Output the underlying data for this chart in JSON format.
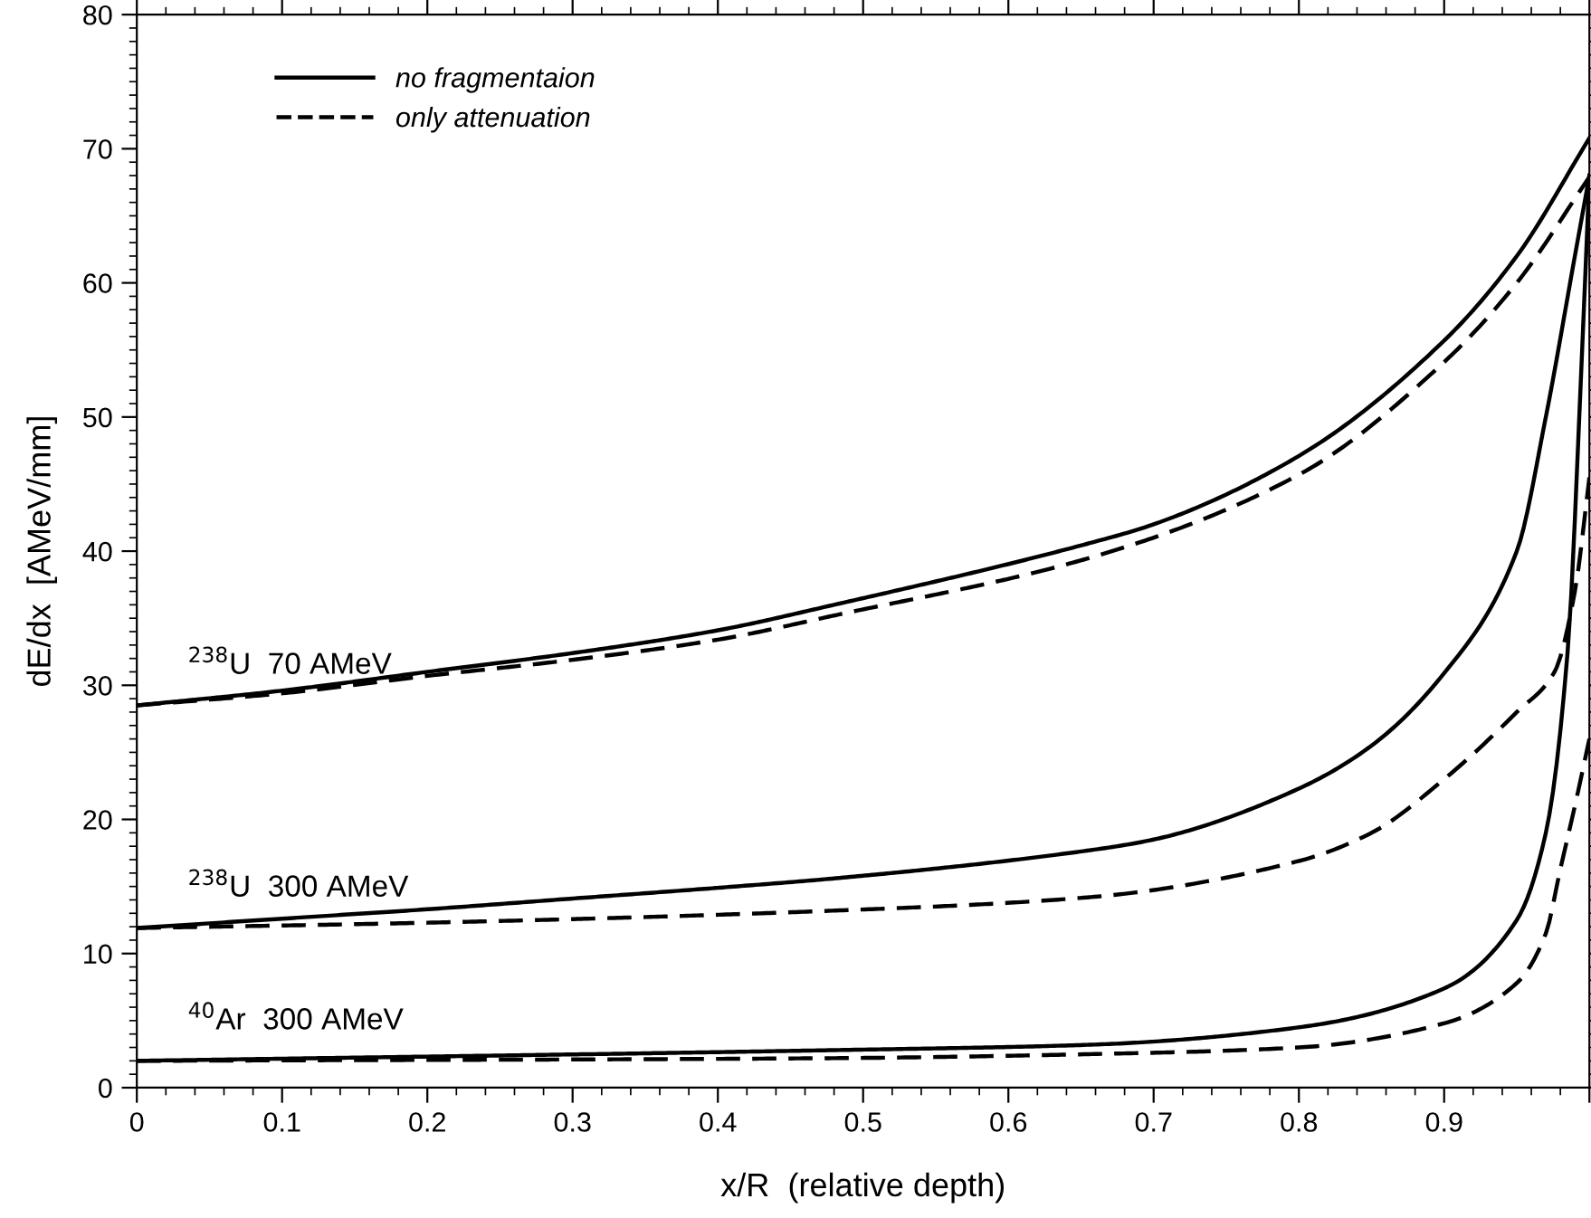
{
  "chart_data": {
    "type": "line",
    "xlabel": "x/R  (relative depth)",
    "ylabel": "dE/dx  [AMeV/mm]",
    "xlim": [
      0,
      1
    ],
    "ylim": [
      0,
      80
    ],
    "xticks": [
      0,
      0.1,
      0.2,
      0.3,
      0.4,
      0.5,
      0.6,
      0.7,
      0.8,
      0.9,
      {
        "value": 1,
        "label": null
      }
    ],
    "yticks": [
      0,
      10,
      20,
      30,
      40,
      50,
      60,
      70,
      80
    ],
    "grid": false,
    "legend": "top left",
    "marker": "none",
    "series": [
      {
        "name": "no fragmentaion",
        "color": "#000000",
        "line_style": "solid",
        "x": [
          0,
          0.1,
          0.2,
          0.3,
          0.4,
          0.48,
          0.656,
          0.7,
          0.8,
          0.9,
          0.95,
          1.0
        ],
        "values": [
          28.5,
          29.6,
          31.0,
          32.4,
          34.1,
          36.0,
          40.6,
          42.0,
          47.1,
          55.7,
          62.0,
          70.8
        ]
      },
      {
        "name": "only attenuation",
        "color": "#000000",
        "line_style": "dashed",
        "x": [
          0,
          0.1,
          0.2,
          0.3,
          0.4,
          0.48,
          0.656,
          0.8,
          0.9,
          0.95,
          1.0
        ],
        "values": [
          28.5,
          29.4,
          30.7,
          31.9,
          33.4,
          35.2,
          39.5,
          45.7,
          54.1,
          60.0,
          67.9
        ]
      },
      {
        "color": "#000000",
        "line_style": "solid",
        "x": [
          0,
          0.1,
          0.2,
          0.3,
          0.4,
          0.48,
          0.656,
          0.7,
          0.8,
          0.85,
          0.9,
          0.95,
          0.97,
          0.99,
          1.0
        ],
        "values": [
          11.9,
          12.6,
          13.3,
          14.1,
          14.9,
          15.6,
          17.7,
          18.5,
          22.3,
          25.5,
          30.9,
          40.0,
          50.0,
          62.0,
          68.0
        ]
      },
      {
        "color": "#000000",
        "line_style": "dashed",
        "x": [
          0,
          0.2,
          0.48,
          0.656,
          0.8,
          0.85,
          0.9,
          0.95,
          0.976,
          0.99,
          1.0
        ],
        "values": [
          11.9,
          12.3,
          13.2,
          14.2,
          16.9,
          19.0,
          23.0,
          28.0,
          31.0,
          37.0,
          45.5
        ]
      },
      {
        "color": "#000000",
        "line_style": "solid",
        "x": [
          0,
          0.48,
          0.656,
          0.8,
          0.9,
          0.95,
          0.97,
          0.985,
          0.995,
          1.0
        ],
        "values": [
          2.0,
          2.8,
          3.2,
          4.5,
          7.4,
          12.5,
          19.0,
          32.5,
          55.0,
          68.0
        ]
      },
      {
        "color": "#000000",
        "line_style": "dashed",
        "x": [
          0,
          0.48,
          0.656,
          0.8,
          0.9,
          0.95,
          0.97,
          0.98,
          0.99,
          1.0
        ],
        "values": [
          2.0,
          2.2,
          2.5,
          3.0,
          4.8,
          7.8,
          11.5,
          16.3,
          21.0,
          26.0
        ]
      }
    ],
    "annotations": [
      "$^{238}$U  70 AMeV",
      "$^{238}$U  300 AMeV",
      "$^{40}$Ar  300 AMeV"
    ]
  }
}
